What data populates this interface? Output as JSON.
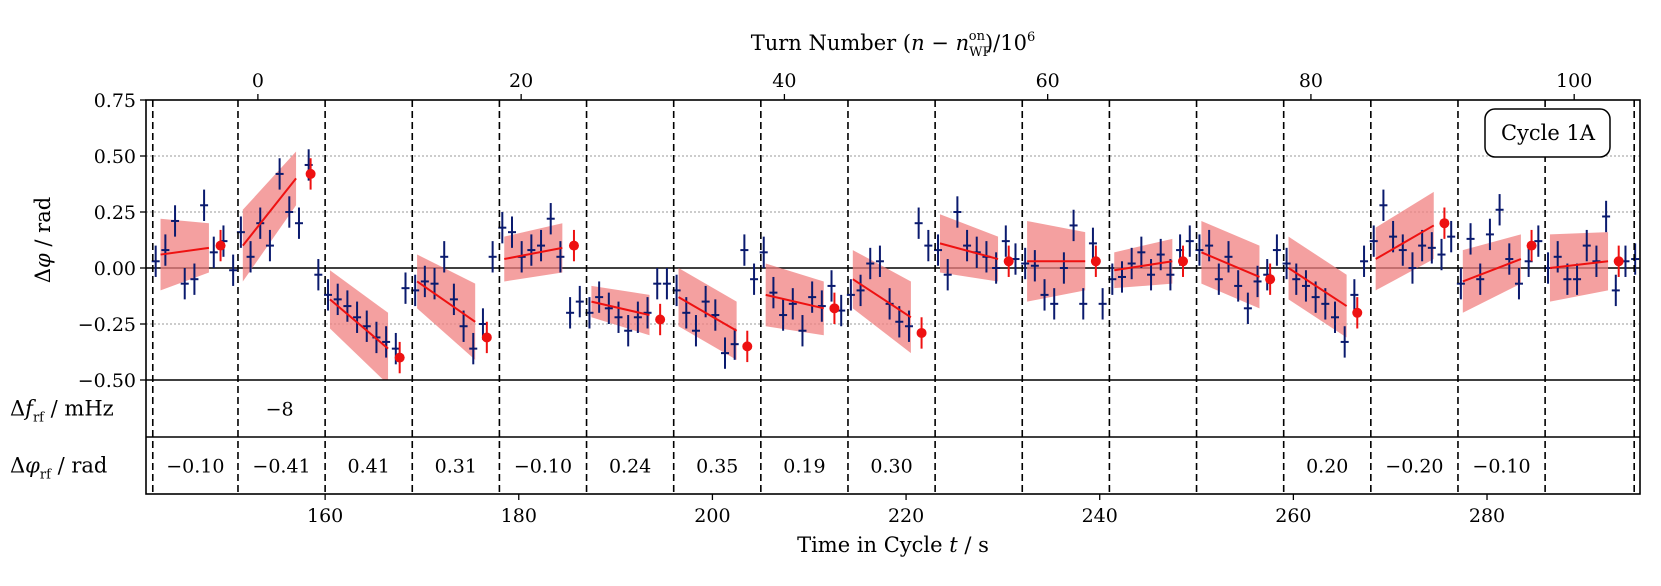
{
  "chart_data": {
    "type": "scatter",
    "legend_label": "Cycle 1A",
    "legend_placement": "top-right",
    "top_axis": {
      "label_parts": [
        "Turn Number (",
        "n",
        " − ",
        "n",
        "WF",
        "on",
        ")/10",
        "6"
      ],
      "ticks": [
        0,
        20,
        40,
        60,
        80,
        100
      ],
      "range": [
        -8.5,
        105
      ]
    },
    "x_axis": {
      "label_parts": [
        "Time in Cycle ",
        "t",
        " / s"
      ],
      "range": [
        141.5,
        295.8
      ],
      "ticks": [
        160,
        180,
        200,
        220,
        240,
        260,
        280
      ]
    },
    "y_axis": {
      "label_parts": [
        "Δ",
        "φ",
        " / rad"
      ],
      "range": [
        -0.5,
        0.75
      ],
      "ticks": [
        -0.5,
        -0.25,
        0.0,
        0.25,
        0.5,
        0.75
      ],
      "tick_labels": [
        "−0.50",
        "−0.25",
        "0.00",
        "0.25",
        "0.50",
        "0.75"
      ],
      "gridlines": [
        -0.25,
        0.25,
        0.5
      ]
    },
    "row_labels": {
      "freq": {
        "parts": [
          "Δ",
          "f",
          "rf",
          " / mHz"
        ]
      },
      "phase": {
        "parts": [
          "Δ",
          "φ",
          "rf",
          " / rad"
        ]
      }
    },
    "segment_boundaries": [
      142.2,
      151.0,
      160.0,
      169.0,
      178.0,
      187.0,
      196.0,
      205.0,
      214.0,
      223.0,
      232.0,
      241.0,
      250.0,
      259.0,
      268.0,
      277.0,
      286.0,
      295.2
    ],
    "freq_values": [
      {
        "x": 155.3,
        "text": "−8"
      }
    ],
    "phase_values": [
      {
        "x": 146.6,
        "text": "−0.10"
      },
      {
        "x": 155.5,
        "text": "−0.41"
      },
      {
        "x": 164.5,
        "text": "0.41"
      },
      {
        "x": 173.5,
        "text": "0.31"
      },
      {
        "x": 182.5,
        "text": "−0.10"
      },
      {
        "x": 191.5,
        "text": "0.24"
      },
      {
        "x": 200.5,
        "text": "0.35"
      },
      {
        "x": 209.5,
        "text": "0.19"
      },
      {
        "x": 218.5,
        "text": "0.30"
      },
      {
        "x": 263.5,
        "text": "0.20"
      },
      {
        "x": 272.5,
        "text": "−0.20"
      },
      {
        "x": 281.5,
        "text": "−0.10"
      }
    ],
    "series": [
      {
        "name": "measurements",
        "color": "#0a1a6e",
        "points": [
          [
            142.5,
            0.03,
            0.07
          ],
          [
            143.5,
            0.08,
            0.07
          ],
          [
            144.5,
            0.21,
            0.07
          ],
          [
            145.5,
            -0.07,
            0.07
          ],
          [
            146.5,
            -0.05,
            0.07
          ],
          [
            147.5,
            0.28,
            0.07
          ],
          [
            148.5,
            0.07,
            0.07
          ],
          [
            149.5,
            0.12,
            0.07
          ],
          [
            150.5,
            -0.01,
            0.07
          ],
          [
            151.3,
            0.16,
            0.07
          ],
          [
            152.3,
            0.05,
            0.07
          ],
          [
            153.3,
            0.2,
            0.07
          ],
          [
            154.3,
            0.1,
            0.07
          ],
          [
            155.3,
            0.42,
            0.07
          ],
          [
            156.3,
            0.25,
            0.07
          ],
          [
            157.3,
            0.2,
            0.07
          ],
          [
            158.3,
            0.46,
            0.07
          ],
          [
            159.3,
            -0.03,
            0.07
          ],
          [
            160.3,
            -0.12,
            0.07
          ],
          [
            161.3,
            -0.14,
            0.07
          ],
          [
            162.3,
            -0.17,
            0.07
          ],
          [
            163.3,
            -0.22,
            0.07
          ],
          [
            164.3,
            -0.26,
            0.07
          ],
          [
            165.3,
            -0.31,
            0.07
          ],
          [
            166.3,
            -0.33,
            0.07
          ],
          [
            167.3,
            -0.36,
            0.07
          ],
          [
            168.3,
            -0.09,
            0.07
          ],
          [
            169.3,
            -0.1,
            0.07
          ],
          [
            170.3,
            -0.06,
            0.07
          ],
          [
            171.3,
            -0.07,
            0.07
          ],
          [
            172.3,
            0.05,
            0.07
          ],
          [
            173.3,
            -0.14,
            0.07
          ],
          [
            174.3,
            -0.26,
            0.07
          ],
          [
            175.3,
            -0.36,
            0.07
          ],
          [
            176.3,
            -0.25,
            0.07
          ],
          [
            177.3,
            0.05,
            0.07
          ],
          [
            178.3,
            0.18,
            0.07
          ],
          [
            179.3,
            0.16,
            0.07
          ],
          [
            180.3,
            0.05,
            0.07
          ],
          [
            181.3,
            0.08,
            0.07
          ],
          [
            182.3,
            0.1,
            0.07
          ],
          [
            183.3,
            0.22,
            0.07
          ],
          [
            184.3,
            0.05,
            0.07
          ],
          [
            185.3,
            -0.2,
            0.07
          ],
          [
            186.3,
            -0.15,
            0.07
          ],
          [
            187.3,
            -0.2,
            0.07
          ],
          [
            188.3,
            -0.13,
            0.07
          ],
          [
            189.3,
            -0.18,
            0.07
          ],
          [
            190.3,
            -0.22,
            0.07
          ],
          [
            191.3,
            -0.28,
            0.07
          ],
          [
            192.3,
            -0.22,
            0.07
          ],
          [
            193.3,
            -0.2,
            0.07
          ],
          [
            194.3,
            -0.07,
            0.07
          ],
          [
            195.3,
            -0.07,
            0.07
          ],
          [
            196.3,
            -0.1,
            0.07
          ],
          [
            197.3,
            -0.2,
            0.07
          ],
          [
            198.3,
            -0.28,
            0.07
          ],
          [
            199.3,
            -0.15,
            0.07
          ],
          [
            200.3,
            -0.21,
            0.07
          ],
          [
            201.3,
            -0.38,
            0.07
          ],
          [
            202.3,
            -0.34,
            0.07
          ],
          [
            203.3,
            0.08,
            0.07
          ],
          [
            204.3,
            -0.05,
            0.07
          ],
          [
            205.3,
            0.07,
            0.07
          ],
          [
            206.3,
            -0.11,
            0.07
          ],
          [
            207.3,
            -0.21,
            0.07
          ],
          [
            208.3,
            -0.16,
            0.07
          ],
          [
            209.3,
            -0.28,
            0.07
          ],
          [
            210.3,
            -0.13,
            0.07
          ],
          [
            211.3,
            -0.17,
            0.07
          ],
          [
            212.3,
            -0.08,
            0.07
          ],
          [
            213.3,
            -0.19,
            0.07
          ],
          [
            214.3,
            -0.12,
            0.07
          ],
          [
            215.3,
            -0.1,
            0.07
          ],
          [
            216.3,
            0.02,
            0.07
          ],
          [
            217.3,
            0.03,
            0.07
          ],
          [
            218.3,
            -0.16,
            0.07
          ],
          [
            219.3,
            -0.24,
            0.07
          ],
          [
            220.3,
            -0.26,
            0.07
          ],
          [
            221.3,
            0.2,
            0.07
          ],
          [
            222.3,
            0.1,
            0.07
          ],
          [
            223.3,
            0.08,
            0.07
          ],
          [
            224.3,
            -0.03,
            0.07
          ],
          [
            225.3,
            0.25,
            0.07
          ],
          [
            226.3,
            0.1,
            0.07
          ],
          [
            227.3,
            0.07,
            0.07
          ],
          [
            228.3,
            0.05,
            0.07
          ],
          [
            229.3,
            0.0,
            0.07
          ],
          [
            230.3,
            0.12,
            0.07
          ],
          [
            231.3,
            0.04,
            0.07
          ],
          [
            232.3,
            0.02,
            0.07
          ],
          [
            233.3,
            0.01,
            0.07
          ],
          [
            234.3,
            -0.12,
            0.07
          ],
          [
            235.3,
            -0.16,
            0.07
          ],
          [
            236.3,
            0.0,
            0.07
          ],
          [
            237.3,
            0.19,
            0.07
          ],
          [
            238.3,
            -0.16,
            0.07
          ],
          [
            239.3,
            0.11,
            0.07
          ],
          [
            240.3,
            -0.16,
            0.07
          ],
          [
            241.3,
            -0.05,
            0.07
          ],
          [
            242.3,
            -0.04,
            0.07
          ],
          [
            243.3,
            0.02,
            0.07
          ],
          [
            244.3,
            0.07,
            0.07
          ],
          [
            245.3,
            -0.03,
            0.07
          ],
          [
            246.3,
            0.06,
            0.07
          ],
          [
            247.3,
            -0.03,
            0.07
          ],
          [
            248.3,
            0.08,
            0.07
          ],
          [
            249.3,
            0.12,
            0.07
          ],
          [
            250.3,
            0.08,
            0.07
          ],
          [
            251.3,
            0.1,
            0.07
          ],
          [
            252.3,
            -0.05,
            0.07
          ],
          [
            253.3,
            0.05,
            0.07
          ],
          [
            254.3,
            -0.08,
            0.07
          ],
          [
            255.3,
            -0.18,
            0.07
          ],
          [
            256.3,
            -0.06,
            0.07
          ],
          [
            257.3,
            -0.03,
            0.07
          ],
          [
            258.3,
            0.08,
            0.07
          ],
          [
            259.3,
            0.02,
            0.07
          ],
          [
            260.3,
            -0.05,
            0.07
          ],
          [
            261.3,
            -0.08,
            0.07
          ],
          [
            262.3,
            -0.13,
            0.07
          ],
          [
            263.3,
            -0.16,
            0.07
          ],
          [
            264.3,
            -0.22,
            0.07
          ],
          [
            265.3,
            -0.33,
            0.07
          ],
          [
            266.3,
            -0.12,
            0.07
          ],
          [
            267.3,
            0.03,
            0.07
          ],
          [
            268.3,
            0.12,
            0.07
          ],
          [
            269.3,
            0.28,
            0.07
          ],
          [
            270.3,
            0.14,
            0.07
          ],
          [
            271.3,
            0.08,
            0.07
          ],
          [
            272.3,
            0.0,
            0.07
          ],
          [
            273.3,
            0.1,
            0.07
          ],
          [
            274.3,
            0.09,
            0.07
          ],
          [
            275.3,
            0.06,
            0.07
          ],
          [
            276.3,
            0.14,
            0.07
          ],
          [
            277.3,
            -0.07,
            0.07
          ],
          [
            278.3,
            0.13,
            0.07
          ],
          [
            279.3,
            -0.05,
            0.07
          ],
          [
            280.3,
            0.15,
            0.07
          ],
          [
            281.3,
            0.26,
            0.07
          ],
          [
            282.3,
            0.04,
            0.07
          ],
          [
            283.3,
            -0.07,
            0.07
          ],
          [
            284.3,
            0.03,
            0.07
          ],
          [
            285.3,
            0.12,
            0.07
          ],
          [
            286.3,
            0.0,
            0.07
          ],
          [
            287.3,
            0.05,
            0.07
          ],
          [
            288.3,
            -0.05,
            0.07
          ],
          [
            289.3,
            -0.05,
            0.07
          ],
          [
            290.3,
            0.1,
            0.07
          ],
          [
            291.3,
            0.03,
            0.07
          ],
          [
            292.3,
            0.23,
            0.07
          ],
          [
            293.3,
            -0.1,
            0.07
          ],
          [
            294.3,
            0.03,
            0.07
          ],
          [
            295.3,
            0.04,
            0.07
          ]
        ]
      },
      {
        "name": "fits",
        "color": "#ee1111",
        "band_color": "#f08080",
        "segments": [
          {
            "x0": 143.0,
            "x1": 148.0,
            "y0": 0.06,
            "y1": 0.09,
            "e0": 0.16,
            "e1": 0.11,
            "pred_x": 149.2,
            "pred_y": 0.1,
            "pred_err": 0.07
          },
          {
            "x0": 151.5,
            "x1": 157.0,
            "y0": 0.1,
            "y1": 0.4,
            "e0": 0.16,
            "e1": 0.12,
            "pred_x": 158.5,
            "pred_y": 0.42,
            "pred_err": 0.07
          },
          {
            "x0": 160.5,
            "x1": 166.5,
            "y0": -0.14,
            "y1": -0.36,
            "e0": 0.13,
            "e1": 0.16,
            "pred_x": 167.7,
            "pred_y": -0.4,
            "pred_err": 0.07
          },
          {
            "x0": 169.5,
            "x1": 175.5,
            "y0": -0.06,
            "y1": -0.24,
            "e0": 0.12,
            "e1": 0.17,
            "pred_x": 176.7,
            "pred_y": -0.31,
            "pred_err": 0.07
          },
          {
            "x0": 178.5,
            "x1": 184.5,
            "y0": 0.04,
            "y1": 0.09,
            "e0": 0.1,
            "e1": 0.11,
            "pred_x": 185.7,
            "pred_y": 0.1,
            "pred_err": 0.07
          },
          {
            "x0": 187.5,
            "x1": 193.5,
            "y0": -0.15,
            "y1": -0.21,
            "e0": 0.07,
            "e1": 0.09,
            "pred_x": 194.6,
            "pred_y": -0.23,
            "pred_err": 0.07
          },
          {
            "x0": 196.5,
            "x1": 202.5,
            "y0": -0.13,
            "y1": -0.28,
            "e0": 0.13,
            "e1": 0.13,
            "pred_x": 203.6,
            "pred_y": -0.35,
            "pred_err": 0.07
          },
          {
            "x0": 205.5,
            "x1": 211.5,
            "y0": -0.12,
            "y1": -0.18,
            "e0": 0.14,
            "e1": 0.12,
            "pred_x": 212.6,
            "pred_y": -0.18,
            "pred_err": 0.07
          },
          {
            "x0": 214.5,
            "x1": 220.5,
            "y0": -0.05,
            "y1": -0.22,
            "e0": 0.13,
            "e1": 0.16,
            "pred_x": 221.6,
            "pred_y": -0.29,
            "pred_err": 0.07
          },
          {
            "x0": 223.5,
            "x1": 229.5,
            "y0": 0.11,
            "y1": 0.04,
            "e0": 0.13,
            "e1": 0.1,
            "pred_x": 230.6,
            "pred_y": 0.03,
            "pred_err": 0.07
          },
          {
            "x0": 232.5,
            "x1": 238.5,
            "y0": 0.03,
            "y1": 0.03,
            "e0": 0.18,
            "e1": 0.13,
            "pred_x": 239.6,
            "pred_y": 0.03,
            "pred_err": 0.07
          },
          {
            "x0": 241.5,
            "x1": 247.5,
            "y0": -0.01,
            "y1": 0.03,
            "e0": 0.08,
            "e1": 0.1,
            "pred_x": 248.6,
            "pred_y": 0.03,
            "pred_err": 0.07
          },
          {
            "x0": 250.5,
            "x1": 256.5,
            "y0": 0.07,
            "y1": -0.04,
            "e0": 0.14,
            "e1": 0.14,
            "pred_x": 257.6,
            "pred_y": -0.05,
            "pred_err": 0.07
          },
          {
            "x0": 259.5,
            "x1": 265.5,
            "y0": 0.0,
            "y1": -0.17,
            "e0": 0.14,
            "e1": 0.14,
            "pred_x": 266.6,
            "pred_y": -0.2,
            "pred_err": 0.07
          },
          {
            "x0": 268.5,
            "x1": 274.5,
            "y0": 0.04,
            "y1": 0.19,
            "e0": 0.14,
            "e1": 0.15,
            "pred_x": 275.6,
            "pred_y": 0.2,
            "pred_err": 0.07
          },
          {
            "x0": 277.5,
            "x1": 283.5,
            "y0": -0.06,
            "y1": 0.04,
            "e0": 0.14,
            "e1": 0.11,
            "pred_x": 284.6,
            "pred_y": 0.1,
            "pred_err": 0.07
          },
          {
            "x0": 286.5,
            "x1": 292.5,
            "y0": 0.0,
            "y1": 0.03,
            "e0": 0.15,
            "e1": 0.13,
            "pred_x": 293.6,
            "pred_y": 0.03,
            "pred_err": 0.07
          }
        ]
      }
    ]
  }
}
